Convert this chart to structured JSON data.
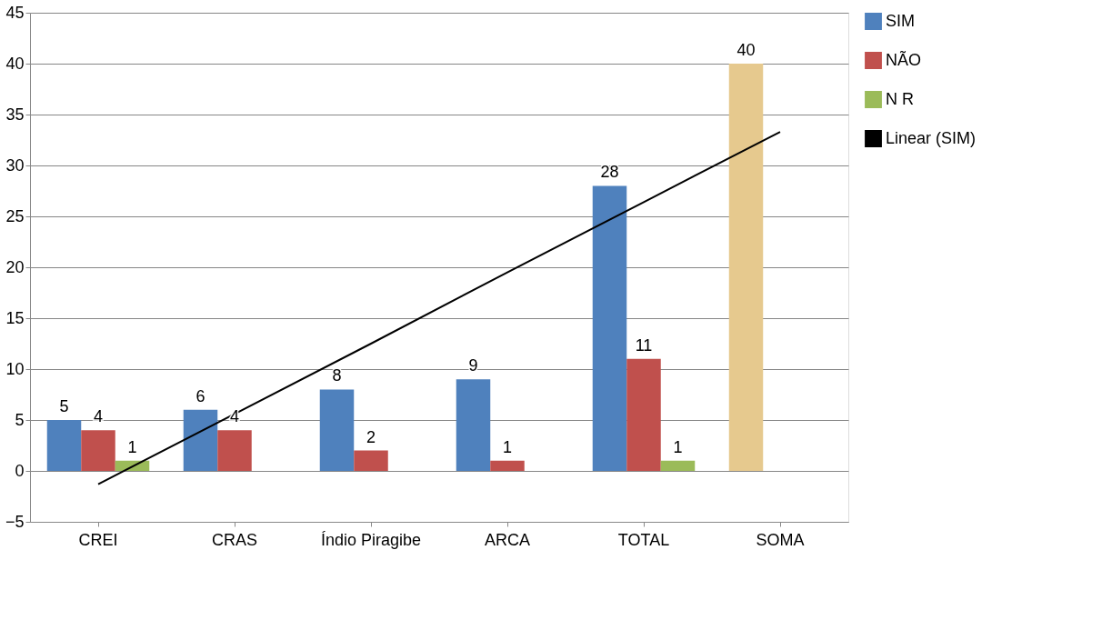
{
  "chart_data": {
    "type": "bar",
    "categories": [
      "CREI",
      "CRAS",
      "Índio Piragibe",
      "ARCA",
      "TOTAL",
      "SOMA"
    ],
    "series": [
      {
        "name": "SIM",
        "color": "#4f81bd",
        "colors": [
          "#4f81bd",
          "#4f81bd",
          "#4f81bd",
          "#4f81bd",
          "#4f81bd",
          "#e6c98e"
        ],
        "values": [
          5,
          6,
          8,
          9,
          28,
          40
        ],
        "value_labels": [
          "5",
          "6",
          "8",
          "9",
          "28",
          "40"
        ]
      },
      {
        "name": "NÃO",
        "color": "#c0504d",
        "values": [
          4,
          4,
          2,
          1,
          11,
          null
        ],
        "value_labels": [
          "4",
          "4",
          "2",
          "1",
          "11",
          null
        ]
      },
      {
        "name": "N R",
        "color": "#9bbb59",
        "values": [
          1,
          null,
          null,
          null,
          1,
          null
        ],
        "value_labels": [
          "1",
          null,
          null,
          null,
          "1",
          null
        ]
      },
      {
        "name": "Linear (SIM)",
        "type": "line",
        "color": "#000000",
        "values": [
          -1.3,
          5.6,
          12.5,
          19.5,
          26.4,
          33.3
        ]
      }
    ],
    "ylim": [
      -5,
      45
    ],
    "yticks": [
      -5,
      0,
      5,
      10,
      15,
      20,
      25,
      30,
      35,
      40,
      45
    ],
    "grid": "y",
    "legend": "right"
  }
}
